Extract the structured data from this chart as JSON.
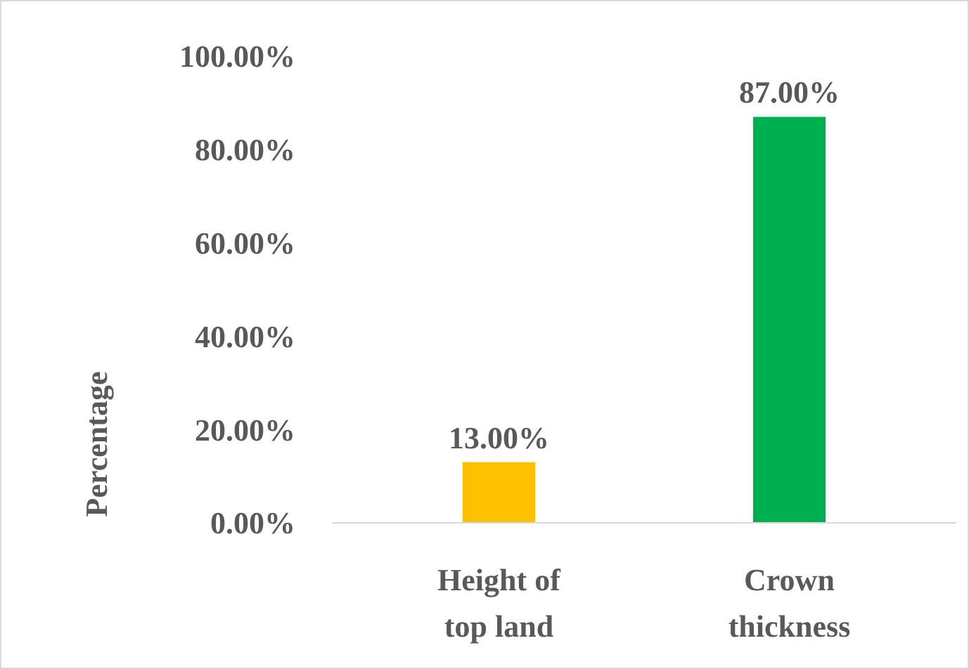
{
  "chart_data": {
    "type": "bar",
    "ylabel": "Percentage",
    "categories": [
      "Height of top land",
      "Crown thickness"
    ],
    "values": [
      13,
      87
    ],
    "colors": [
      "#ffc000",
      "#00b050"
    ],
    "value_labels": [
      "13.00%",
      "87.00%"
    ],
    "ylim": [
      0,
      100
    ],
    "yticks": [
      {
        "value": 0,
        "label": "0.00%"
      },
      {
        "value": 20,
        "label": "20.00%"
      },
      {
        "value": 40,
        "label": "40.00%"
      },
      {
        "value": 60,
        "label": "60.00%"
      },
      {
        "value": 80,
        "label": "80.00%"
      },
      {
        "value": 100,
        "label": "100.00%"
      }
    ],
    "grid": false
  }
}
